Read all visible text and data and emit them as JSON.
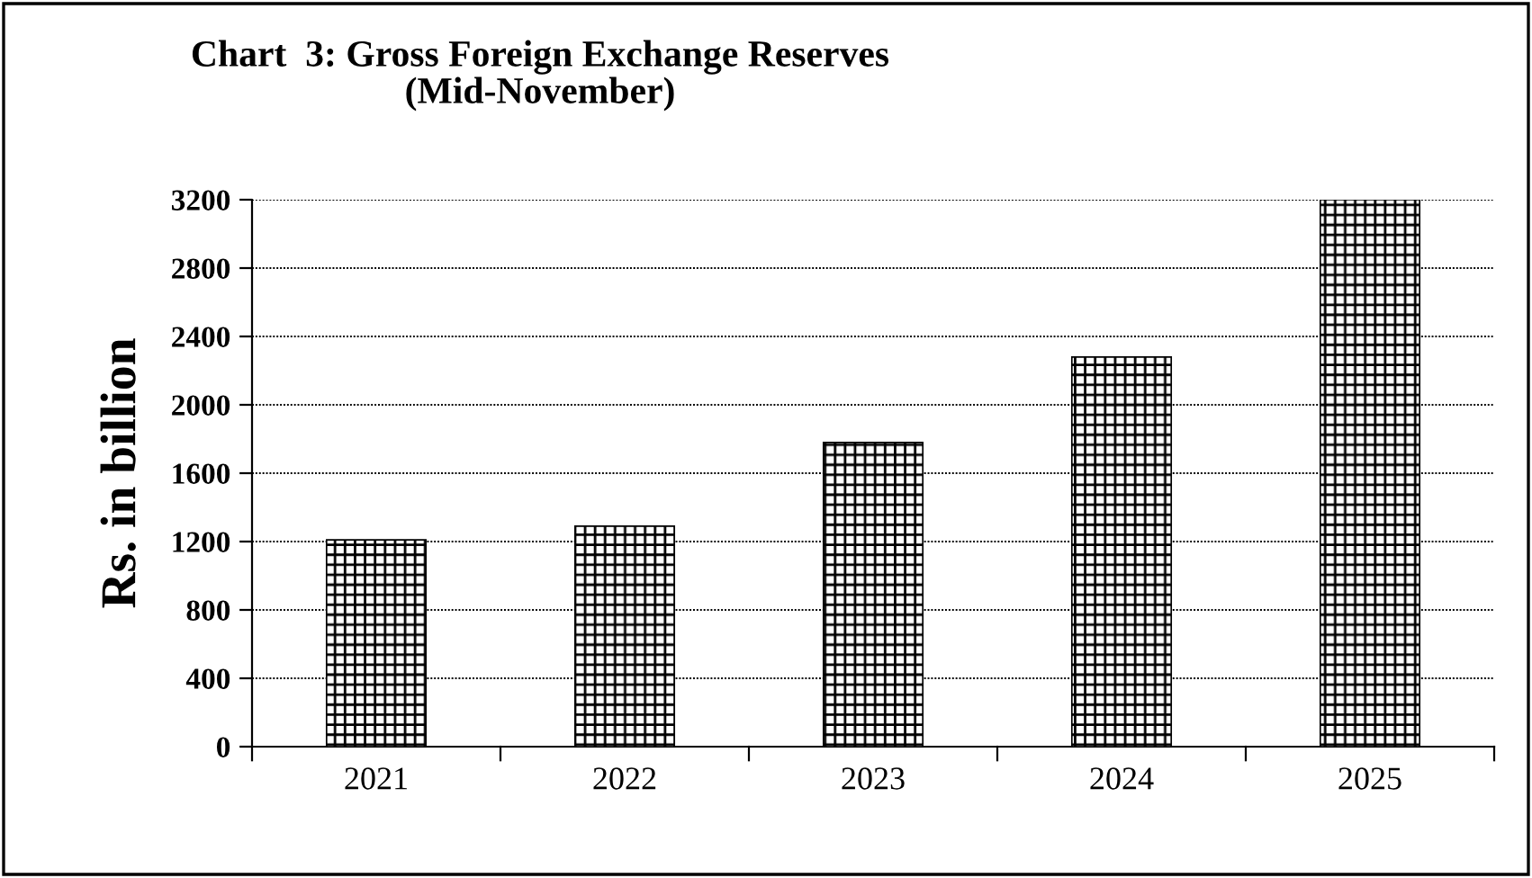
{
  "chart_data": {
    "type": "bar",
    "title": "Chart  3: Gross Foreign Exchange Reserves\n(Mid-November)",
    "ylabel": "Rs. in billion",
    "categories": [
      "2021",
      "2022",
      "2023",
      "2024",
      "2025"
    ],
    "values": [
      1210,
      1290,
      1780,
      2280,
      3200
    ],
    "color": "#000000",
    "ylim": [
      0,
      3200
    ],
    "yticks": [
      0,
      400,
      800,
      1200,
      1600,
      2000,
      2400,
      2800,
      3200
    ],
    "grid": "y",
    "legend": false
  }
}
